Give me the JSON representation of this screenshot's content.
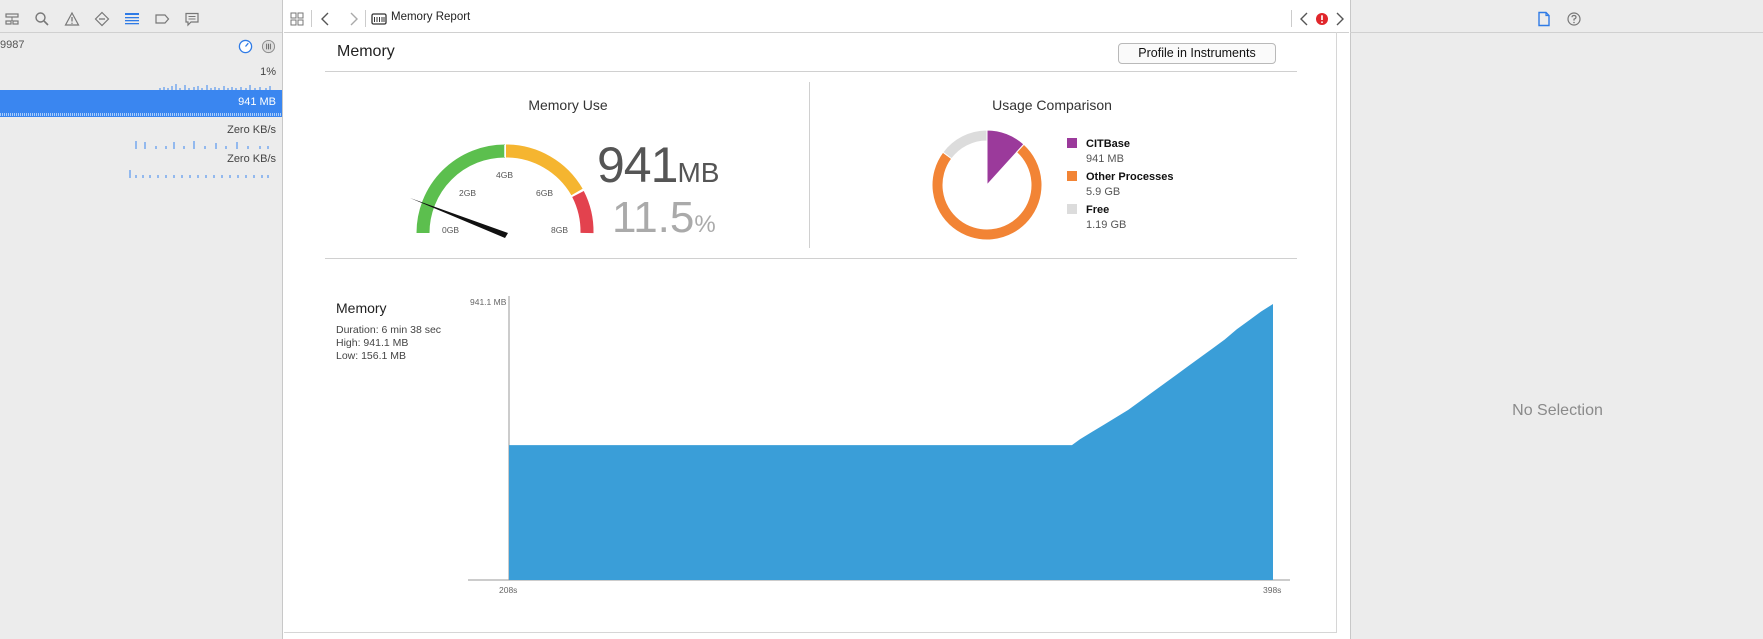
{
  "navigator": {
    "process_label": "9987",
    "cpu_value": "1%",
    "memory_value": "941 MB",
    "disk_value": "Zero KB/s",
    "network_value": "Zero KB/s"
  },
  "editor": {
    "jump_bar_title": "Memory Report",
    "section_title": "Memory",
    "profile_button_label": "Profile in Instruments"
  },
  "memory_use": {
    "title": "Memory Use",
    "value": "941",
    "value_unit": "MB",
    "percent": "11.5",
    "percent_unit": "%",
    "gauge_ticks": [
      "0GB",
      "2GB",
      "4GB",
      "6GB",
      "8GB"
    ],
    "gauge_colors": {
      "green": "#5cbf4e",
      "yellow": "#f5b530",
      "red": "#e3424e"
    }
  },
  "usage_comparison": {
    "title": "Usage Comparison",
    "legend": [
      {
        "label": "CITBase",
        "value": "941 MB",
        "color": "#9b3a9b"
      },
      {
        "label": "Other Processes",
        "value": "5.9 GB",
        "color": "#f28435"
      },
      {
        "label": "Free",
        "value": "1.19 GB",
        "color": "#dcdcdc"
      }
    ],
    "slices_gb": [
      0.941,
      5.9,
      1.19
    ]
  },
  "timeline": {
    "title": "Memory",
    "duration": "Duration: 6 min 38 sec",
    "high": "High: 941.1 MB",
    "low": "Low: 156.1 MB",
    "y_max_label": "941.1 MB",
    "x_start_label": "208s",
    "x_end_label": "398s",
    "color": "#3a9ed8"
  },
  "chart_data": {
    "type": "area",
    "title": "Memory",
    "x_label": "",
    "y_label": "",
    "x_range": [
      208,
      398
    ],
    "y_range": [
      0,
      941.1
    ],
    "series": [
      {
        "x": [
          208,
          348,
          350,
          353,
          356,
          359,
          362,
          365,
          368,
          371,
          374,
          377,
          380,
          383,
          386,
          389,
          392,
          395,
          398
        ],
        "y": [
          460,
          460,
          480,
          505,
          530,
          555,
          580,
          610,
          640,
          670,
          700,
          730,
          760,
          790,
          820,
          855,
          885,
          915,
          941.1
        ]
      }
    ],
    "grid": false,
    "legend": "none"
  },
  "inspector": {
    "no_selection": "No Selection"
  }
}
